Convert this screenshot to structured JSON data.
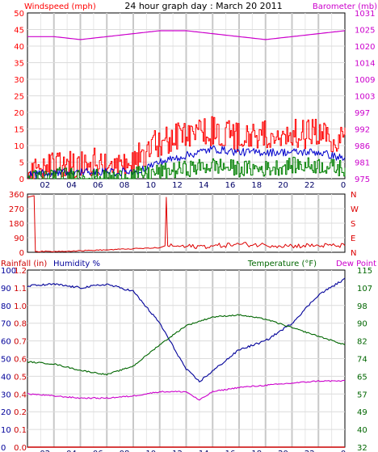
{
  "title": "24 hour graph day : March 20 2011",
  "colors": {
    "wind": "#ff0000",
    "gust": "#ff0000",
    "wind_avg": "#0000cc",
    "wind_low": "#008000",
    "barometer": "#cc00cc",
    "direction": "#dd0000",
    "rain": "#cc0000",
    "humidity": "#000099",
    "temperature": "#006600",
    "dewpoint": "#cc00cc",
    "grid": "#c8c8c8",
    "frame": "#000000"
  },
  "panel1": {
    "left_label": "Windspeed (mph)",
    "right_label": "Barometer (mb)",
    "y_left_ticks": [
      "0",
      "5",
      "10",
      "15",
      "20",
      "25",
      "30",
      "35",
      "40",
      "45",
      "50"
    ],
    "y_right_ticks": [
      "975",
      "981",
      "986",
      "992",
      "997",
      "1003",
      "1009",
      "1014",
      "1020",
      "1025",
      "1031"
    ],
    "x_ticks": [
      "02",
      "04",
      "06",
      "08",
      "10",
      "12",
      "14",
      "16",
      "18",
      "20",
      "22",
      "0"
    ]
  },
  "panel2": {
    "y_left_ticks": [
      "0",
      "90",
      "180",
      "270",
      "360"
    ],
    "y_right_ticks": [
      "N",
      "E",
      "S",
      "W",
      "N"
    ]
  },
  "panel3": {
    "label_rain": "Rainfall (in)",
    "label_humidity": "Humidity %",
    "label_temperature": "Temperature (°F)",
    "label_dewpoint": "Dew Point",
    "y_humidity_ticks": [
      "0",
      "10",
      "20",
      "30",
      "40",
      "50",
      "60",
      "70",
      "80",
      "90",
      "100"
    ],
    "y_rain_ticks": [
      "0.0",
      "0.1",
      "0.2",
      "0.4",
      "0.5",
      "0.6",
      "0.7",
      "0.8",
      "1.0",
      "1.1",
      "1.2"
    ],
    "y_temp_ticks": [
      "32",
      "40",
      "49",
      "57",
      "65",
      "74",
      "82",
      "90",
      "98",
      "107",
      "115"
    ],
    "x_ticks": [
      "02",
      "04",
      "06",
      "08",
      "10",
      "12",
      "14",
      "16",
      "18",
      "20",
      "22",
      "0"
    ]
  },
  "chart_data": [
    {
      "type": "line",
      "x_unit": "hour",
      "x": [
        0,
        2,
        4,
        6,
        8,
        10,
        12,
        14,
        16,
        18,
        20,
        22,
        24
      ],
      "series": [
        {
          "axis": "left",
          "role": "gust",
          "values": [
            2,
            3,
            4,
            5,
            5,
            11,
            13,
            14,
            12,
            13,
            13,
            13,
            11
          ]
        },
        {
          "axis": "left",
          "role": "average",
          "values": [
            1,
            2,
            2,
            2,
            2,
            5,
            7,
            9,
            8,
            8,
            8,
            8,
            6
          ]
        },
        {
          "axis": "left",
          "role": "low",
          "values": [
            0,
            1,
            1,
            0,
            1,
            2,
            3,
            4,
            3,
            3,
            4,
            4,
            3
          ]
        },
        {
          "axis": "right",
          "role": "barometer",
          "values": [
            1023,
            1023,
            1022,
            1023,
            1024,
            1025,
            1025,
            1024,
            1023,
            1022,
            1023,
            1024,
            1025
          ]
        }
      ],
      "ylim_left": [
        0,
        50
      ],
      "ylim_right": [
        975,
        1031
      ]
    },
    {
      "type": "line",
      "x_unit": "hour",
      "x": [
        0,
        0.5,
        0.6,
        2,
        4,
        6,
        8,
        10,
        10.4,
        10.5,
        10.6,
        12,
        14,
        16,
        18,
        20,
        22,
        24
      ],
      "series": [
        {
          "role": "wind_direction",
          "values": [
            340,
            350,
            5,
            5,
            10,
            15,
            22,
            28,
            40,
            340,
            40,
            35,
            38,
            50,
            45,
            40,
            42,
            40
          ]
        }
      ],
      "ylim": [
        0,
        360
      ]
    },
    {
      "type": "line",
      "x_unit": "hour",
      "x": [
        0,
        2,
        4,
        6,
        8,
        10,
        12,
        13,
        14,
        16,
        18,
        20,
        22,
        24
      ],
      "series": [
        {
          "axis": "humidity",
          "role": "humidity",
          "values": [
            91,
            92,
            90,
            92,
            88,
            70,
            44,
            37,
            43,
            55,
            60,
            70,
            86,
            95
          ]
        },
        {
          "axis": "temperature",
          "role": "temperature",
          "values": [
            72,
            71,
            68,
            66,
            70,
            80,
            89,
            91,
            93,
            94,
            92,
            88,
            84,
            80
          ]
        },
        {
          "axis": "temperature",
          "role": "dewpoint",
          "values": [
            57,
            56,
            55,
            55,
            56,
            58,
            58,
            54,
            58,
            60,
            61,
            62,
            63,
            63
          ]
        },
        {
          "axis": "rain",
          "role": "rainfall",
          "values": [
            0,
            0,
            0,
            0,
            0,
            0,
            0,
            0,
            0,
            0,
            0,
            0,
            0,
            0
          ]
        }
      ],
      "ylim_humidity": [
        0,
        100
      ],
      "ylim_rain": [
        0,
        1.2
      ],
      "ylim_temperature": [
        32,
        115
      ]
    }
  ]
}
